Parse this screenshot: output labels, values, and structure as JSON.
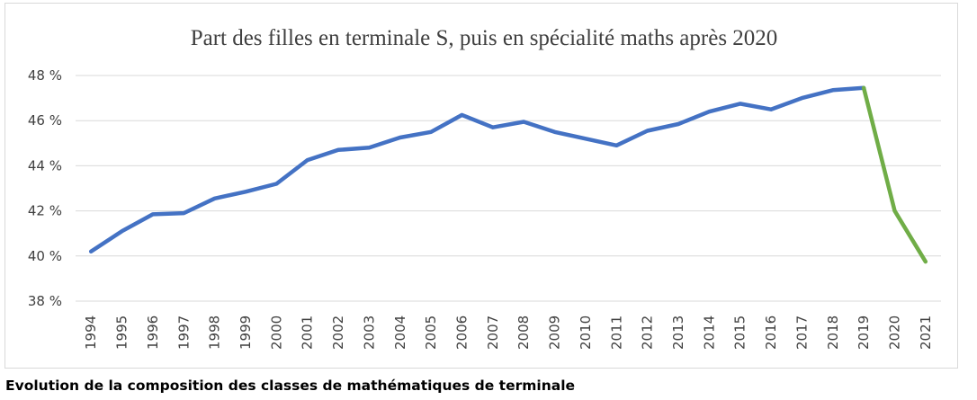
{
  "caption": "Evolution de la composition des classes de mathématiques de terminale",
  "chart_data": {
    "type": "line",
    "title": "Part des filles en terminale S, puis en spécialité maths après 2020",
    "xlabel": "",
    "ylabel": "",
    "ylim": [
      38,
      48
    ],
    "y_ticks": [
      {
        "value": 48,
        "label": "48 %"
      },
      {
        "value": 46,
        "label": "46 %"
      },
      {
        "value": 44,
        "label": "44 %"
      },
      {
        "value": 42,
        "label": "42 %"
      },
      {
        "value": 40,
        "label": "40 %"
      },
      {
        "value": 38,
        "label": "38 %"
      }
    ],
    "grid": true,
    "legend": "none",
    "categories": [
      "1994",
      "1995",
      "1996",
      "1997",
      "1998",
      "1999",
      "2000",
      "2001",
      "2002",
      "2003",
      "2004",
      "2005",
      "2006",
      "2007",
      "2008",
      "2009",
      "2010",
      "2011",
      "2012",
      "2013",
      "2014",
      "2015",
      "2016",
      "2017",
      "2018",
      "2019",
      "2020",
      "2021"
    ],
    "series": [
      {
        "color": "#4472c4",
        "values": [
          40.2,
          41.1,
          41.85,
          41.9,
          42.55,
          42.85,
          43.2,
          44.25,
          44.7,
          44.8,
          45.25,
          45.5,
          46.25,
          45.7,
          45.95,
          45.5,
          45.2,
          44.9,
          45.55,
          45.85,
          46.4,
          46.75,
          46.5,
          47.0,
          47.35,
          47.45,
          null,
          null
        ]
      },
      {
        "color": "#70ad47",
        "values": [
          null,
          null,
          null,
          null,
          null,
          null,
          null,
          null,
          null,
          null,
          null,
          null,
          null,
          null,
          null,
          null,
          null,
          null,
          null,
          null,
          null,
          null,
          null,
          null,
          null,
          47.45,
          42.0,
          39.75
        ]
      }
    ]
  }
}
